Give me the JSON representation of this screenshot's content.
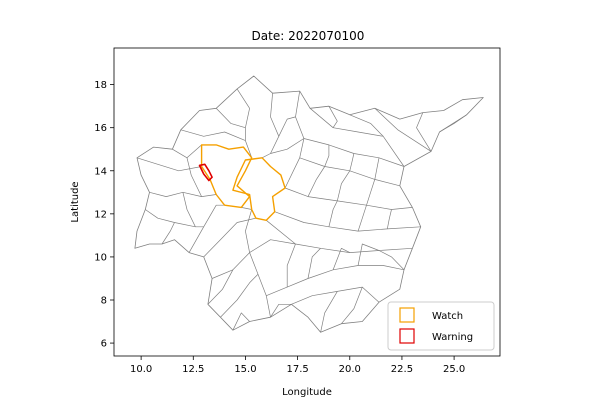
{
  "chart_data": {
    "type": "choropleth-map",
    "title": "Date: 2022070100",
    "xlabel": "Longitude",
    "ylabel": "Latitude",
    "xlim": [
      8.7,
      27.2
    ],
    "ylim": [
      5.4,
      19.7
    ],
    "xticks": [
      10.0,
      12.5,
      15.0,
      17.5,
      20.0,
      22.5,
      25.0
    ],
    "xtick_labels": [
      "10.0",
      "12.5",
      "15.0",
      "17.5",
      "20.0",
      "22.5",
      "25.0"
    ],
    "yticks": [
      6,
      8,
      10,
      12,
      14,
      16,
      18
    ],
    "ytick_labels": [
      "6",
      "8",
      "10",
      "12",
      "14",
      "16",
      "18"
    ],
    "legend_position": "lower-right",
    "legend": [
      {
        "label": "Watch",
        "color": "#f5a000"
      },
      {
        "label": "Warning",
        "color": "#e00000"
      }
    ],
    "base_color": "#808080",
    "basin_outline": [
      [
        9.7,
        10.4
      ],
      [
        9.8,
        11.2
      ],
      [
        10.2,
        12.2
      ],
      [
        10.4,
        13.0
      ],
      [
        10.0,
        13.8
      ],
      [
        9.8,
        14.6
      ],
      [
        10.6,
        15.1
      ],
      [
        11.5,
        15.0
      ],
      [
        11.9,
        15.9
      ],
      [
        12.8,
        16.8
      ],
      [
        13.6,
        16.9
      ],
      [
        14.6,
        17.8
      ],
      [
        15.4,
        18.4
      ],
      [
        16.3,
        17.6
      ],
      [
        17.6,
        17.7
      ],
      [
        18.1,
        16.9
      ],
      [
        19.0,
        17.0
      ],
      [
        20.0,
        16.6
      ],
      [
        21.2,
        16.9
      ],
      [
        22.4,
        16.4
      ],
      [
        23.5,
        16.7
      ],
      [
        24.5,
        16.8
      ],
      [
        25.4,
        17.3
      ],
      [
        26.4,
        17.4
      ],
      [
        25.6,
        16.6
      ],
      [
        24.3,
        15.8
      ],
      [
        23.9,
        14.9
      ],
      [
        22.6,
        14.2
      ],
      [
        22.4,
        13.3
      ],
      [
        23.0,
        12.3
      ],
      [
        23.4,
        11.4
      ],
      [
        23.0,
        10.4
      ],
      [
        22.6,
        9.4
      ],
      [
        22.4,
        8.5
      ],
      [
        21.4,
        7.9
      ],
      [
        20.6,
        7.0
      ],
      [
        19.6,
        6.9
      ],
      [
        18.6,
        6.5
      ],
      [
        18.0,
        7.2
      ],
      [
        17.2,
        7.8
      ],
      [
        16.2,
        7.2
      ],
      [
        15.2,
        7.0
      ],
      [
        14.4,
        6.6
      ],
      [
        13.8,
        7.2
      ],
      [
        13.2,
        7.8
      ],
      [
        13.4,
        9.0
      ],
      [
        13.0,
        10.0
      ],
      [
        12.3,
        10.2
      ],
      [
        11.6,
        10.8
      ],
      [
        11.0,
        10.6
      ],
      [
        10.4,
        10.6
      ],
      [
        9.7,
        10.4
      ]
    ],
    "watch_regions": [
      [
        [
          12.9,
          15.2
        ],
        [
          13.6,
          15.2
        ],
        [
          14.2,
          15.0
        ],
        [
          14.9,
          15.1
        ],
        [
          15.3,
          14.6
        ],
        [
          15.0,
          14.0
        ],
        [
          14.6,
          13.3
        ],
        [
          15.2,
          12.8
        ],
        [
          14.8,
          12.3
        ],
        [
          14.0,
          12.4
        ],
        [
          13.6,
          12.9
        ],
        [
          13.3,
          13.6
        ],
        [
          12.9,
          14.2
        ],
        [
          12.9,
          15.2
        ]
      ],
      [
        [
          14.4,
          13.1
        ],
        [
          15.2,
          12.9
        ],
        [
          15.3,
          12.2
        ],
        [
          15.5,
          11.8
        ],
        [
          16.0,
          11.7
        ],
        [
          16.4,
          12.1
        ],
        [
          16.3,
          12.8
        ],
        [
          16.9,
          13.2
        ],
        [
          16.7,
          13.8
        ],
        [
          16.2,
          14.2
        ],
        [
          15.8,
          14.6
        ],
        [
          15.0,
          14.5
        ],
        [
          14.6,
          13.7
        ],
        [
          14.4,
          13.1
        ]
      ]
    ],
    "warning_regions": [
      [
        [
          12.8,
          14.25
        ],
        [
          13.05,
          14.3
        ],
        [
          13.25,
          14.0
        ],
        [
          13.4,
          13.7
        ],
        [
          13.25,
          13.55
        ],
        [
          13.0,
          13.85
        ],
        [
          12.8,
          14.25
        ]
      ]
    ],
    "subbasin_edges": [
      [
        [
          10.4,
          13.0
        ],
        [
          11.2,
          12.8
        ],
        [
          12.0,
          13.0
        ],
        [
          12.9,
          12.8
        ],
        [
          13.6,
          12.9
        ]
      ],
      [
        [
          9.8,
          14.6
        ],
        [
          10.8,
          14.3
        ],
        [
          11.8,
          14.0
        ],
        [
          12.9,
          14.2
        ]
      ],
      [
        [
          11.5,
          15.0
        ],
        [
          12.2,
          14.6
        ],
        [
          12.9,
          15.2
        ]
      ],
      [
        [
          11.9,
          15.9
        ],
        [
          13.0,
          15.6
        ],
        [
          14.0,
          15.8
        ],
        [
          15.0,
          15.4
        ],
        [
          15.3,
          14.6
        ]
      ],
      [
        [
          14.6,
          17.8
        ],
        [
          15.2,
          16.9
        ],
        [
          15.0,
          16.0
        ],
        [
          15.0,
          15.4
        ]
      ],
      [
        [
          13.6,
          16.9
        ],
        [
          14.3,
          16.2
        ],
        [
          15.0,
          16.0
        ]
      ],
      [
        [
          16.3,
          17.6
        ],
        [
          16.2,
          16.5
        ],
        [
          16.6,
          15.6
        ],
        [
          16.2,
          14.8
        ],
        [
          15.8,
          14.6
        ]
      ],
      [
        [
          17.6,
          17.7
        ],
        [
          17.4,
          16.5
        ],
        [
          17.8,
          15.5
        ],
        [
          17.6,
          14.6
        ],
        [
          16.9,
          13.2
        ]
      ],
      [
        [
          18.1,
          16.9
        ],
        [
          19.2,
          16.0
        ],
        [
          20.4,
          15.8
        ],
        [
          21.6,
          15.6
        ],
        [
          22.6,
          14.2
        ]
      ],
      [
        [
          19.0,
          17.0
        ],
        [
          19.4,
          16.3
        ],
        [
          19.2,
          16.0
        ]
      ],
      [
        [
          20.0,
          16.6
        ],
        [
          21.0,
          16.2
        ],
        [
          21.6,
          15.6
        ]
      ],
      [
        [
          21.2,
          16.9
        ],
        [
          22.3,
          15.9
        ],
        [
          23.9,
          14.9
        ]
      ],
      [
        [
          17.8,
          15.5
        ],
        [
          19.0,
          15.2
        ],
        [
          20.2,
          14.8
        ],
        [
          21.4,
          14.6
        ],
        [
          22.6,
          14.2
        ]
      ],
      [
        [
          17.6,
          14.6
        ],
        [
          18.8,
          14.2
        ],
        [
          20.0,
          14.0
        ],
        [
          21.2,
          13.6
        ],
        [
          22.4,
          13.3
        ]
      ],
      [
        [
          16.9,
          13.2
        ],
        [
          18.0,
          12.8
        ],
        [
          19.4,
          12.6
        ],
        [
          20.8,
          12.4
        ],
        [
          22.0,
          12.2
        ],
        [
          23.0,
          12.3
        ]
      ],
      [
        [
          16.4,
          12.1
        ],
        [
          17.8,
          11.6
        ],
        [
          19.0,
          11.4
        ],
        [
          20.4,
          11.2
        ],
        [
          21.8,
          11.3
        ],
        [
          23.4,
          11.4
        ]
      ],
      [
        [
          16.0,
          11.7
        ],
        [
          17.4,
          10.6
        ],
        [
          18.6,
          10.4
        ],
        [
          20.0,
          10.2
        ],
        [
          21.4,
          10.3
        ],
        [
          23.0,
          10.4
        ]
      ],
      [
        [
          15.3,
          12.2
        ],
        [
          15.0,
          11.2
        ],
        [
          15.2,
          10.2
        ],
        [
          15.6,
          9.2
        ],
        [
          16.0,
          8.2
        ],
        [
          16.2,
          7.2
        ]
      ],
      [
        [
          13.4,
          9.0
        ],
        [
          14.4,
          9.4
        ],
        [
          15.2,
          10.2
        ],
        [
          16.2,
          10.8
        ],
        [
          17.4,
          10.6
        ]
      ],
      [
        [
          13.0,
          10.0
        ],
        [
          13.8,
          10.8
        ],
        [
          14.6,
          11.6
        ],
        [
          15.5,
          11.8
        ]
      ],
      [
        [
          12.3,
          10.2
        ],
        [
          13.0,
          11.4
        ],
        [
          13.6,
          12.4
        ],
        [
          14.0,
          12.4
        ]
      ],
      [
        [
          13.8,
          7.2
        ],
        [
          14.6,
          8.0
        ],
        [
          15.2,
          8.8
        ],
        [
          15.6,
          9.2
        ]
      ],
      [
        [
          16.0,
          8.2
        ],
        [
          17.0,
          8.6
        ],
        [
          18.0,
          9.0
        ],
        [
          19.2,
          9.4
        ],
        [
          20.4,
          9.6
        ],
        [
          21.6,
          9.6
        ],
        [
          22.6,
          9.4
        ]
      ],
      [
        [
          17.2,
          7.8
        ],
        [
          18.2,
          8.2
        ],
        [
          19.4,
          8.4
        ],
        [
          20.6,
          8.6
        ],
        [
          21.4,
          7.9
        ]
      ],
      [
        [
          18.6,
          6.5
        ],
        [
          18.8,
          7.4
        ],
        [
          19.4,
          8.4
        ]
      ],
      [
        [
          19.6,
          6.9
        ],
        [
          20.2,
          7.6
        ],
        [
          20.6,
          8.6
        ]
      ],
      [
        [
          18.0,
          9.0
        ],
        [
          18.2,
          10.0
        ],
        [
          18.6,
          10.4
        ]
      ],
      [
        [
          19.2,
          9.4
        ],
        [
          19.6,
          10.4
        ],
        [
          20.0,
          10.2
        ]
      ],
      [
        [
          20.4,
          9.6
        ],
        [
          20.6,
          10.6
        ],
        [
          21.4,
          10.3
        ]
      ],
      [
        [
          19.0,
          11.4
        ],
        [
          19.2,
          12.2
        ],
        [
          19.4,
          12.6
        ]
      ],
      [
        [
          20.4,
          11.2
        ],
        [
          20.6,
          11.8
        ],
        [
          20.8,
          12.4
        ]
      ],
      [
        [
          21.8,
          11.3
        ],
        [
          21.9,
          11.8
        ],
        [
          22.0,
          12.2
        ]
      ],
      [
        [
          18.0,
          12.8
        ],
        [
          18.4,
          13.6
        ],
        [
          18.8,
          14.2
        ]
      ],
      [
        [
          19.4,
          12.6
        ],
        [
          19.6,
          13.4
        ],
        [
          20.0,
          14.0
        ]
      ],
      [
        [
          20.8,
          12.4
        ],
        [
          21.0,
          13.0
        ],
        [
          21.2,
          13.6
        ]
      ],
      [
        [
          18.8,
          14.2
        ],
        [
          19.0,
          14.7
        ],
        [
          19.0,
          15.2
        ]
      ],
      [
        [
          20.0,
          14.0
        ],
        [
          20.1,
          14.4
        ],
        [
          20.2,
          14.8
        ]
      ],
      [
        [
          21.2,
          13.6
        ],
        [
          21.3,
          14.1
        ],
        [
          21.4,
          14.6
        ]
      ],
      [
        [
          24.3,
          15.8
        ],
        [
          25.0,
          16.2
        ],
        [
          25.6,
          16.6
        ]
      ],
      [
        [
          23.5,
          16.7
        ],
        [
          23.2,
          16.0
        ],
        [
          23.9,
          14.9
        ]
      ],
      [
        [
          16.2,
          14.8
        ],
        [
          17.0,
          15.0
        ],
        [
          17.8,
          15.5
        ]
      ],
      [
        [
          16.6,
          15.6
        ],
        [
          17.0,
          16.4
        ],
        [
          17.4,
          16.5
        ]
      ],
      [
        [
          10.2,
          12.2
        ],
        [
          10.8,
          11.8
        ],
        [
          11.6,
          11.6
        ],
        [
          12.6,
          11.4
        ],
        [
          13.0,
          11.4
        ]
      ],
      [
        [
          11.0,
          10.6
        ],
        [
          11.4,
          11.2
        ],
        [
          11.6,
          11.6
        ]
      ],
      [
        [
          12.0,
          13.0
        ],
        [
          12.2,
          12.2
        ],
        [
          12.6,
          11.4
        ]
      ],
      [
        [
          13.2,
          7.8
        ],
        [
          13.9,
          8.5
        ],
        [
          14.4,
          9.4
        ]
      ],
      [
        [
          14.4,
          6.6
        ],
        [
          14.8,
          7.4
        ],
        [
          15.2,
          7.0
        ]
      ],
      [
        [
          16.2,
          7.2
        ],
        [
          16.6,
          7.8
        ],
        [
          17.2,
          7.8
        ]
      ],
      [
        [
          17.4,
          10.6
        ],
        [
          17.0,
          9.6
        ],
        [
          17.0,
          8.6
        ]
      ],
      [
        [
          22.6,
          9.4
        ],
        [
          22.0,
          10.0
        ],
        [
          21.4,
          10.3
        ]
      ],
      [
        [
          14.8,
          12.3
        ],
        [
          15.3,
          12.2
        ]
      ],
      [
        [
          12.2,
          14.6
        ],
        [
          12.4,
          13.8
        ],
        [
          12.9,
          12.8
        ]
      ]
    ]
  }
}
